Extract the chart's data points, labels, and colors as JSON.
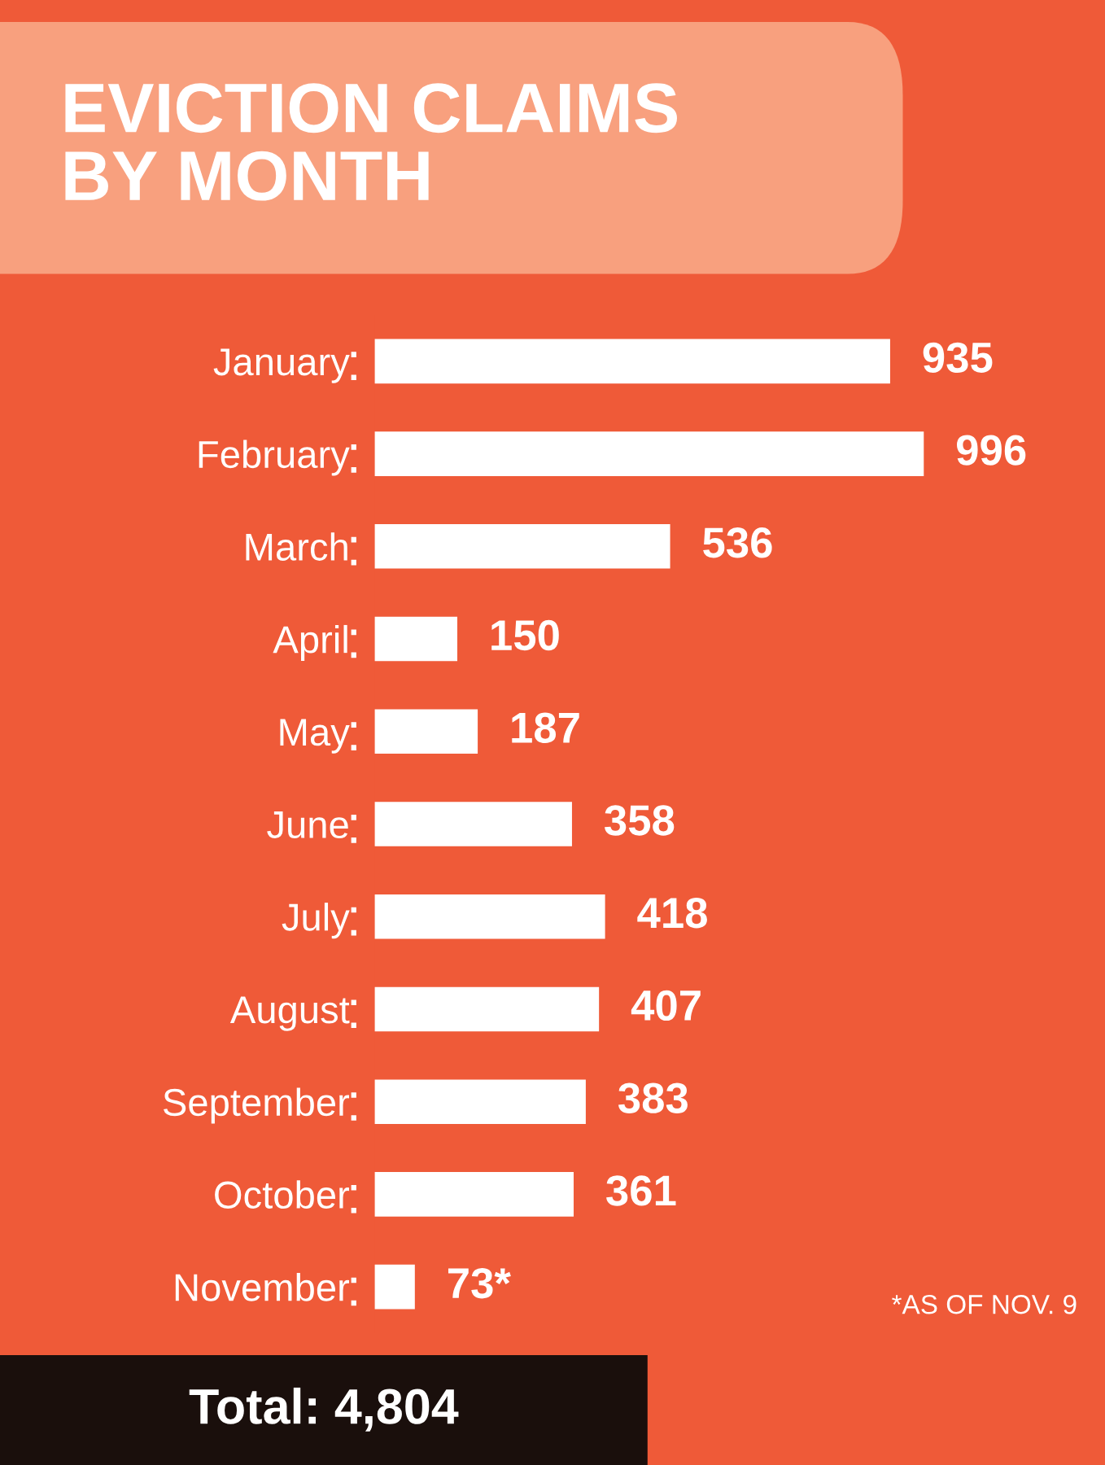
{
  "chart_data": {
    "type": "bar",
    "orientation": "horizontal",
    "title": "EVICTION CLAIMS\nBY MONTH",
    "categories": [
      "January",
      "February",
      "March",
      "April",
      "May",
      "June",
      "July",
      "August",
      "September",
      "October",
      "November"
    ],
    "values": [
      935,
      996,
      536,
      150,
      187,
      358,
      418,
      407,
      383,
      361,
      73
    ],
    "value_labels": [
      "935",
      "996",
      "536",
      "150",
      "187",
      "358",
      "418",
      "407",
      "383",
      "361",
      "73*"
    ],
    "color": "#ffffff",
    "annotations": [
      "*AS OF NOV. 9",
      "Total: 4,804"
    ]
  }
}
